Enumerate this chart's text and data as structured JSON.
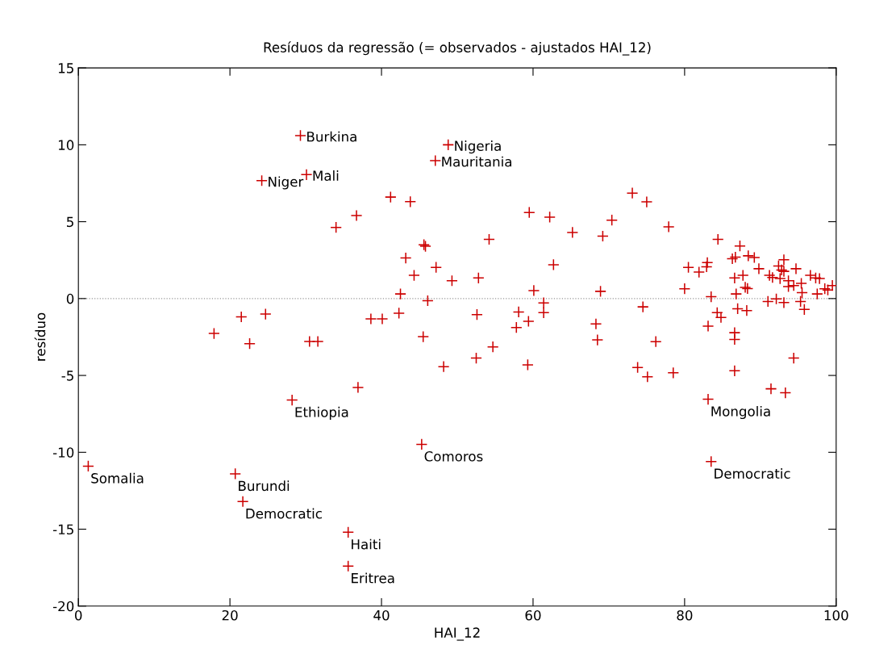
{
  "chart_data": {
    "type": "scatter",
    "title": "Resíduos da regressão (= observados - ajustados HAI_12)",
    "xlabel": "HAI_12",
    "ylabel": "resíduo",
    "xlim": [
      0,
      100
    ],
    "xticks": [
      0,
      20,
      40,
      60,
      80,
      100
    ],
    "ylim": [
      -20,
      15
    ],
    "yticks": [
      -20,
      -15,
      -10,
      -5,
      0,
      5,
      10,
      15
    ],
    "grid": false,
    "legend": false,
    "marker": "cross",
    "ref_lines": [
      {
        "axis": "y",
        "value": 0,
        "color": "#999999",
        "line_style": "dotted"
      }
    ],
    "series": [
      {
        "color": "#cc0000",
        "x": [
          29.3,
          30.1,
          24.2,
          48.8,
          47.1,
          28.2,
          45.3,
          1.3,
          20.7,
          21.7,
          35.6,
          35.6,
          83.1,
          83.5,
          17.9,
          21.5,
          24.7,
          22.6,
          30.5,
          31.6,
          34.0,
          41.2,
          43.8,
          36.7,
          45.6,
          45.8,
          54.2,
          59.5,
          62.2,
          65.2,
          62.7,
          43.2,
          47.2,
          44.3,
          49.3,
          52.8,
          60.1,
          42.5,
          46.1,
          61.4,
          61.4,
          38.6,
          40.1,
          42.3,
          52.6,
          58.1,
          59.4,
          57.8,
          45.5,
          54.7,
          52.5,
          48.2,
          59.3,
          36.9,
          73.1,
          75.0,
          70.4,
          69.2,
          77.9,
          68.9,
          74.5,
          68.3,
          68.5,
          76.2,
          73.8,
          75.1,
          78.5,
          84.4,
          87.3,
          80.5,
          81.9,
          83.0,
          82.9,
          80.0,
          83.5,
          86.3,
          86.7,
          88.4,
          89.2,
          89.8,
          86.6,
          87.7,
          88.0,
          88.3,
          86.8,
          87.0,
          88.2,
          84.3,
          84.8,
          83.1,
          86.6,
          86.6,
          86.6,
          93.1,
          92.4,
          92.8,
          93.1,
          94.7,
          91.2,
          91.6,
          92.6,
          93.7,
          93.7,
          94.4,
          95.4,
          96.6,
          97.3,
          97.8,
          95.5,
          97.5,
          98.5,
          98.9,
          99.5,
          91.0,
          92.1,
          93.1,
          95.3,
          95.8,
          94.4,
          91.4,
          93.3
        ],
        "values": [
          10.6,
          8.06,
          7.67,
          10.0,
          8.97,
          -6.6,
          -9.48,
          -10.9,
          -11.4,
          -13.2,
          -15.2,
          -17.4,
          -6.55,
          -10.6,
          -2.27,
          -1.19,
          -1.01,
          -2.93,
          -2.79,
          -2.79,
          4.63,
          6.6,
          6.3,
          5.4,
          3.5,
          3.4,
          3.85,
          5.6,
          5.3,
          4.3,
          2.2,
          2.64,
          2.03,
          1.51,
          1.16,
          1.34,
          0.52,
          0.3,
          -0.14,
          -0.28,
          -0.92,
          -1.32,
          -1.32,
          -0.95,
          -1.04,
          -0.87,
          -1.48,
          -1.88,
          -2.48,
          -3.14,
          -3.87,
          -4.43,
          -4.31,
          -5.78,
          6.86,
          6.29,
          5.1,
          4.06,
          4.67,
          0.47,
          -0.54,
          -1.65,
          -2.69,
          -2.8,
          -4.48,
          -5.09,
          -4.83,
          3.85,
          3.42,
          2.03,
          1.72,
          2.34,
          2.07,
          0.64,
          0.12,
          2.59,
          2.69,
          2.78,
          2.67,
          1.94,
          1.34,
          1.51,
          0.73,
          0.65,
          0.3,
          -0.66,
          -0.78,
          -0.92,
          -1.23,
          -1.79,
          -2.22,
          -2.66,
          -4.7,
          2.52,
          2.12,
          1.86,
          1.77,
          1.94,
          1.51,
          1.37,
          1.3,
          1.16,
          0.78,
          0.85,
          0.99,
          1.51,
          1.34,
          1.3,
          0.38,
          0.3,
          0.64,
          0.56,
          0.85,
          -0.19,
          -0.02,
          -0.26,
          -0.19,
          -0.71,
          -3.87,
          -5.87,
          -6.13
        ]
      }
    ],
    "annotations": [
      {
        "text": "Burkina",
        "x": 29.3,
        "y": 10.6
      },
      {
        "text": "Mali",
        "x": 30.1,
        "y": 8.06
      },
      {
        "text": "Niger",
        "x": 24.2,
        "y": 7.67
      },
      {
        "text": "Nigeria",
        "x": 48.8,
        "y": 10.0
      },
      {
        "text": "Mauritania",
        "x": 47.1,
        "y": 8.97
      },
      {
        "text": "Ethiopia",
        "x": 28.2,
        "y": -6.6
      },
      {
        "text": "Comoros",
        "x": 45.3,
        "y": -9.48
      },
      {
        "text": "Somalia",
        "x": 1.3,
        "y": -10.9
      },
      {
        "text": "Burundi",
        "x": 20.7,
        "y": -11.4
      },
      {
        "text": "Democratic",
        "x": 21.7,
        "y": -13.2
      },
      {
        "text": "Haiti",
        "x": 35.6,
        "y": -15.2
      },
      {
        "text": "Eritrea",
        "x": 35.6,
        "y": -17.4
      },
      {
        "text": "Mongolia",
        "x": 83.1,
        "y": -6.55
      },
      {
        "text": "Democratic",
        "x": 83.5,
        "y": -10.6
      }
    ]
  }
}
